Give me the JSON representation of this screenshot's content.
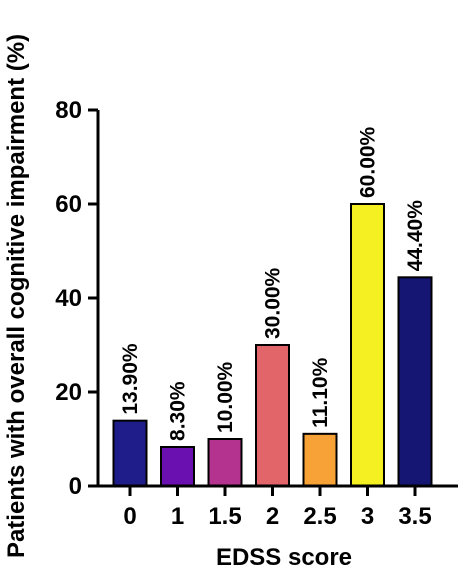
{
  "chart_data": {
    "type": "bar",
    "categories": [
      "0",
      "1",
      "1.5",
      "2",
      "2.5",
      "3",
      "3.5"
    ],
    "values": [
      13.9,
      8.3,
      10.0,
      30.0,
      11.1,
      60.0,
      44.4
    ],
    "data_labels": [
      "13.90%",
      "8.30%",
      "10.00%",
      "30.00%",
      "11.10%",
      "60.00%",
      "44.40%"
    ],
    "bar_colors": [
      "#1f1d8a",
      "#6a0fb0",
      "#b3338f",
      "#e2656a",
      "#f7a236",
      "#f4f022",
      "#151673"
    ],
    "title": "",
    "xlabel": "EDSS score",
    "ylabel": "Patients with overall cognitive impairment (%)",
    "ylim": [
      0,
      80
    ],
    "yticks": [
      0,
      20,
      40,
      60,
      80
    ],
    "grid": false,
    "legend": "none"
  }
}
